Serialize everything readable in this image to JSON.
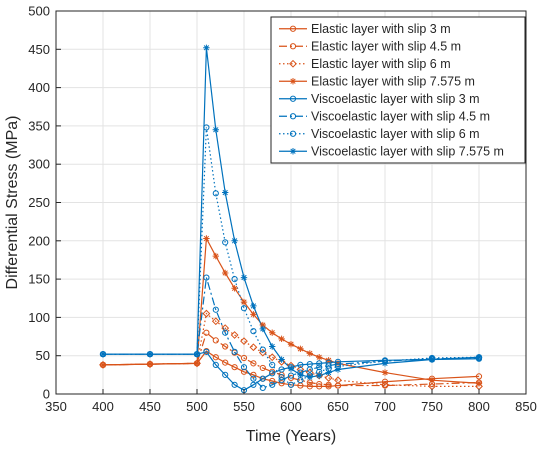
{
  "chart_data": {
    "type": "line",
    "xlabel": "Time (Years)",
    "ylabel": "Differential Stress (MPa)",
    "xlim": [
      350,
      850
    ],
    "ylim": [
      0,
      500
    ],
    "xticks": [
      350,
      400,
      450,
      500,
      550,
      600,
      650,
      700,
      750,
      800,
      850
    ],
    "yticks": [
      0,
      50,
      100,
      150,
      200,
      250,
      300,
      350,
      400,
      450,
      500
    ],
    "grid": true,
    "legend_position": "top-right",
    "colors": {
      "elastic": "#D95319",
      "viscoelastic": "#0072BD"
    },
    "series": [
      {
        "name": "Elastic layer with slip 3 m",
        "color": "#D95319",
        "dash": "solid",
        "marker": "circle",
        "x": [
          400,
          450,
          500,
          510,
          520,
          530,
          540,
          550,
          560,
          570,
          580,
          590,
          600,
          610,
          620,
          630,
          640,
          650,
          700,
          750,
          800
        ],
        "y": [
          38,
          39,
          40,
          56,
          48,
          41,
          35,
          29,
          25,
          20,
          17,
          14,
          12,
          11,
          10,
          10,
          10,
          11,
          16,
          20,
          23
        ]
      },
      {
        "name": "Elastic layer with slip 4.5 m",
        "color": "#D95319",
        "dash": "dashdot",
        "marker": "circle",
        "x": [
          400,
          450,
          500,
          510,
          520,
          530,
          540,
          550,
          560,
          570,
          580,
          590,
          600,
          610,
          620,
          630,
          640,
          650,
          700,
          750,
          800
        ],
        "y": [
          38,
          39,
          40,
          80,
          70,
          62,
          54,
          47,
          40,
          34,
          29,
          25,
          21,
          18,
          15,
          13,
          12,
          11,
          11,
          13,
          15
        ]
      },
      {
        "name": "Elastic layer with slip 6 m",
        "color": "#D95319",
        "dash": "dotted",
        "marker": "diamond",
        "x": [
          400,
          450,
          500,
          510,
          520,
          530,
          540,
          550,
          560,
          570,
          580,
          590,
          600,
          610,
          620,
          630,
          640,
          650,
          700,
          750,
          800
        ],
        "y": [
          38,
          39,
          40,
          105,
          95,
          86,
          77,
          69,
          61,
          54,
          48,
          42,
          37,
          32,
          28,
          24,
          21,
          18,
          12,
          10,
          10
        ]
      },
      {
        "name": "Elastic layer with slip 7.575 m",
        "color": "#D95319",
        "dash": "solid",
        "marker": "star",
        "x": [
          400,
          450,
          500,
          510,
          520,
          530,
          540,
          550,
          560,
          570,
          580,
          590,
          600,
          610,
          620,
          630,
          640,
          650,
          700,
          750,
          800
        ],
        "y": [
          38,
          39,
          40,
          203,
          180,
          158,
          138,
          120,
          104,
          90,
          80,
          72,
          65,
          59,
          53,
          48,
          44,
          40,
          28,
          18,
          14
        ]
      },
      {
        "name": "Viscoelastic layer with slip 3 m",
        "color": "#0072BD",
        "dash": "solid",
        "marker": "circle",
        "x": [
          400,
          450,
          500,
          510,
          520,
          530,
          540,
          550,
          560,
          570,
          580,
          590,
          600,
          610,
          620,
          630,
          640,
          650,
          700,
          750,
          800
        ],
        "y": [
          52,
          52,
          52,
          55,
          38,
          25,
          12,
          5,
          12,
          20,
          27,
          32,
          35,
          38,
          39,
          40,
          41,
          42,
          44,
          45,
          46
        ]
      },
      {
        "name": "Viscoelastic layer with slip 4.5 m",
        "color": "#0072BD",
        "dash": "dashdot",
        "marker": "circle",
        "x": [
          400,
          450,
          500,
          510,
          520,
          530,
          540,
          550,
          560,
          570,
          580,
          590,
          600,
          610,
          620,
          630,
          640,
          650,
          700,
          750,
          800
        ],
        "y": [
          52,
          52,
          52,
          152,
          110,
          80,
          55,
          35,
          20,
          8,
          12,
          18,
          24,
          28,
          32,
          35,
          37,
          39,
          43,
          46,
          47
        ]
      },
      {
        "name": "Viscoelastic layer with slip 6 m",
        "color": "#0072BD",
        "dash": "dotted",
        "marker": "circle",
        "x": [
          400,
          450,
          500,
          510,
          520,
          530,
          540,
          550,
          560,
          570,
          580,
          590,
          600,
          610,
          620,
          630,
          640,
          650,
          700,
          750,
          800
        ],
        "y": [
          52,
          52,
          52,
          348,
          262,
          198,
          150,
          112,
          82,
          58,
          38,
          22,
          12,
          18,
          24,
          29,
          33,
          36,
          43,
          47,
          48
        ]
      },
      {
        "name": "Viscoelastic layer with slip 7.575 m",
        "color": "#0072BD",
        "dash": "solid",
        "marker": "star",
        "x": [
          400,
          450,
          500,
          510,
          520,
          530,
          540,
          550,
          560,
          570,
          580,
          590,
          600,
          610,
          620,
          630,
          640,
          650,
          700,
          750,
          800
        ],
        "y": [
          52,
          52,
          52,
          452,
          345,
          263,
          200,
          152,
          115,
          85,
          62,
          45,
          33,
          25,
          22,
          24,
          28,
          32,
          40,
          45,
          48
        ]
      }
    ]
  }
}
